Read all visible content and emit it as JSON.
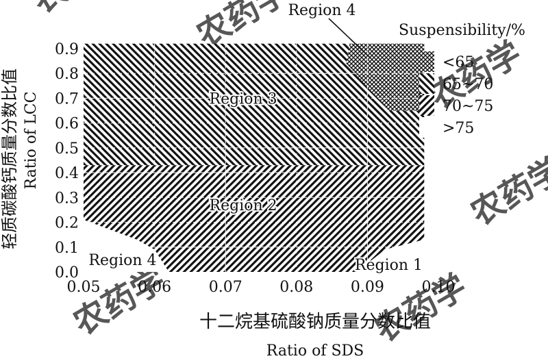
{
  "chart_data": {
    "type": "heatmap",
    "title": "",
    "xlabel_cn": "十二烷基硫酸钠质量分数比值",
    "xlabel": "Ratio of SDS",
    "ylabel_cn": "轻质碳酸钙质量分数比值",
    "ylabel": "Ratio of LCC",
    "xlim": [
      0.05,
      0.1
    ],
    "ylim": [
      0.0,
      0.9
    ],
    "x_ticks": [
      "0.05",
      "0.06",
      "0.07",
      "0.08",
      "0.09",
      "0.10"
    ],
    "y_ticks": [
      "0.0",
      "0.1",
      "0.2",
      "0.3",
      "0.4",
      "0.5",
      "0.6",
      "0.7",
      "0.8",
      "0.9"
    ],
    "legend": {
      "title": "Suspensibility/%",
      "position": "right",
      "entries": [
        "<65",
        "65~70",
        "70~75",
        ">75"
      ]
    },
    "regions": [
      {
        "label": "Region 4",
        "class": "<65",
        "pattern": "cross-hatch",
        "polygon": [
          [
            0.0875,
            0.92
          ],
          [
            0.098,
            0.92
          ],
          [
            0.098,
            0.65
          ],
          [
            0.093,
            0.65
          ],
          [
            0.087,
            0.84
          ]
        ]
      },
      {
        "label": "Region 3",
        "class": "65~70",
        "pattern": "back-diagonal",
        "polygon": [
          [
            0.05,
            0.92
          ],
          [
            0.0875,
            0.92
          ],
          [
            0.087,
            0.84
          ],
          [
            0.093,
            0.65
          ],
          [
            0.098,
            0.65
          ],
          [
            0.098,
            0.43
          ],
          [
            0.05,
            0.43
          ]
        ]
      },
      {
        "label": "Region 2",
        "class": "70~75",
        "pattern": "forward-diagonal",
        "polygon": [
          [
            0.05,
            0.43
          ],
          [
            0.098,
            0.43
          ],
          [
            0.098,
            0.13
          ],
          [
            0.0925,
            0.09
          ],
          [
            0.0885,
            0.0
          ],
          [
            0.062,
            0.0
          ],
          [
            0.06,
            0.09
          ],
          [
            0.0575,
            0.13
          ],
          [
            0.05,
            0.21
          ]
        ]
      },
      {
        "label": "Region 1",
        "class": ">75",
        "pattern": "blank",
        "polygon": [
          [
            0.0885,
            0.0
          ],
          [
            0.0925,
            0.09
          ],
          [
            0.098,
            0.13
          ],
          [
            0.098,
            0.0
          ]
        ]
      },
      {
        "label": "Region 4",
        "class": ">75",
        "pattern": "blank",
        "polygon": [
          [
            0.05,
            0.0
          ],
          [
            0.062,
            0.0
          ],
          [
            0.06,
            0.09
          ],
          [
            0.0575,
            0.13
          ],
          [
            0.05,
            0.21
          ]
        ]
      }
    ],
    "region_labels": [
      {
        "text": "Region 3",
        "x": 0.0725,
        "y": 0.7
      },
      {
        "text": "Region 2",
        "x": 0.0725,
        "y": 0.27
      },
      {
        "text": "Region 4",
        "x": 0.0555,
        "y": 0.05
      },
      {
        "text": "Region 1",
        "x": 0.093,
        "y": 0.03
      }
    ],
    "callout": {
      "text": "Region 4",
      "x": 0.0915,
      "y": 0.85
    }
  },
  "watermark": "农药学"
}
